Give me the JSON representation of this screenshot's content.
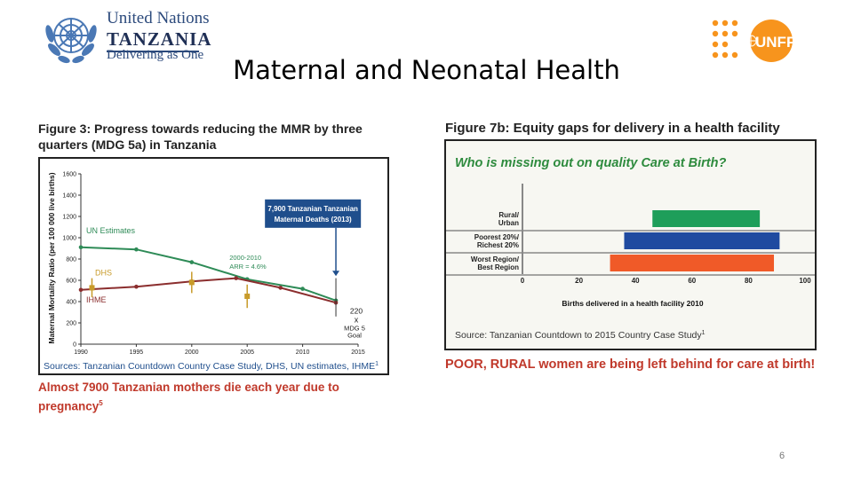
{
  "header": {
    "un_logo": {
      "line1": "United Nations",
      "line2": "TANZANIA",
      "line3": "Delivering as One",
      "icon": "un-emblem-icon"
    },
    "unfpa_logo": {
      "text": "UNFPA",
      "icon": "unfpa-dots-icon",
      "color": "#f7941d"
    },
    "title": "Maternal and Neonatal Health"
  },
  "figure3": {
    "caption": "Figure 3: Progress towards reducing the MMR by three quarters (MDG 5a) in Tanzania",
    "note": "Almost 7900 Tanzanian mothers die each year due to pregnancy",
    "note_sup": "5"
  },
  "figure7": {
    "caption": "Figure 7b: Equity gaps for delivery in a health facility",
    "note": "POOR, RURAL women are being left behind for care at birth!"
  },
  "page_number": "6",
  "chart_data": [
    {
      "type": "line",
      "title": "",
      "ylabel": "Maternal Mortality Ratio (per 100 000 live births)",
      "xlabel": "",
      "xlim": [
        1990,
        2015
      ],
      "ylim": [
        0,
        1600
      ],
      "x_ticks": [
        "1990",
        "1995",
        "2000",
        "2005",
        "2010",
        "2015"
      ],
      "y_ticks": [
        "0",
        "200",
        "400",
        "600",
        "800",
        "1000",
        "1200",
        "1400",
        "1600"
      ],
      "grid": false,
      "series": [
        {
          "name": "UN Estimates",
          "color": "#2e8b57",
          "points": [
            [
              1990,
              910
            ],
            [
              1995,
              890
            ],
            [
              2000,
              770
            ],
            [
              2005,
              610
            ],
            [
              2010,
              520
            ],
            [
              2013,
              410
            ]
          ]
        },
        {
          "name": "IHME",
          "color": "#8b2e2e",
          "points": [
            [
              1990,
              510
            ],
            [
              1995,
              540
            ],
            [
              2000,
              590
            ],
            [
              2004,
              620
            ],
            [
              2008,
              530
            ],
            [
              2013,
              390
            ]
          ]
        },
        {
          "name": "DHS",
          "color": "#c89b2a",
          "points": [
            [
              1991,
              530
            ],
            [
              2000,
              580
            ],
            [
              2005,
              450
            ]
          ],
          "errors": [
            [
              440,
              620
            ],
            [
              480,
              680
            ],
            [
              340,
              560
            ]
          ]
        }
      ],
      "annotations": {
        "box": "7,900 Tanzanian Maternal Deaths (2013)",
        "box_color": "#1f4e8c",
        "trend": "2000-2010 ARR = 4.6%",
        "goal_value": "220",
        "goal_label": "MDG 5 Goal",
        "goal_marker": "x"
      },
      "goal": [
        2015,
        220
      ],
      "source": "Sources: Tanzanian Countdown Country Case Study, DHS, UN estimates, IHME",
      "source_sup": "1"
    },
    {
      "type": "bar",
      "orientation": "horizontal",
      "title": "Who is missing out on quality Care at Birth?",
      "xlabel": "Births delivered in a health facility 2010",
      "xlim": [
        0,
        100
      ],
      "x_ticks": [
        "0",
        "20",
        "40",
        "60",
        "80",
        "100"
      ],
      "categories": [
        "Rural/ Urban",
        "Poorest 20%/ Richest 20%",
        "Worst Region/ Best Region"
      ],
      "ranges": [
        [
          46,
          84
        ],
        [
          36,
          91
        ],
        [
          31,
          89
        ]
      ],
      "colors": [
        "#1e9e5a",
        "#1f4aa0",
        "#f05a28"
      ],
      "source": "Source: Tanzanian Countdown to 2015 Country Case Study",
      "source_sup": "1"
    }
  ]
}
